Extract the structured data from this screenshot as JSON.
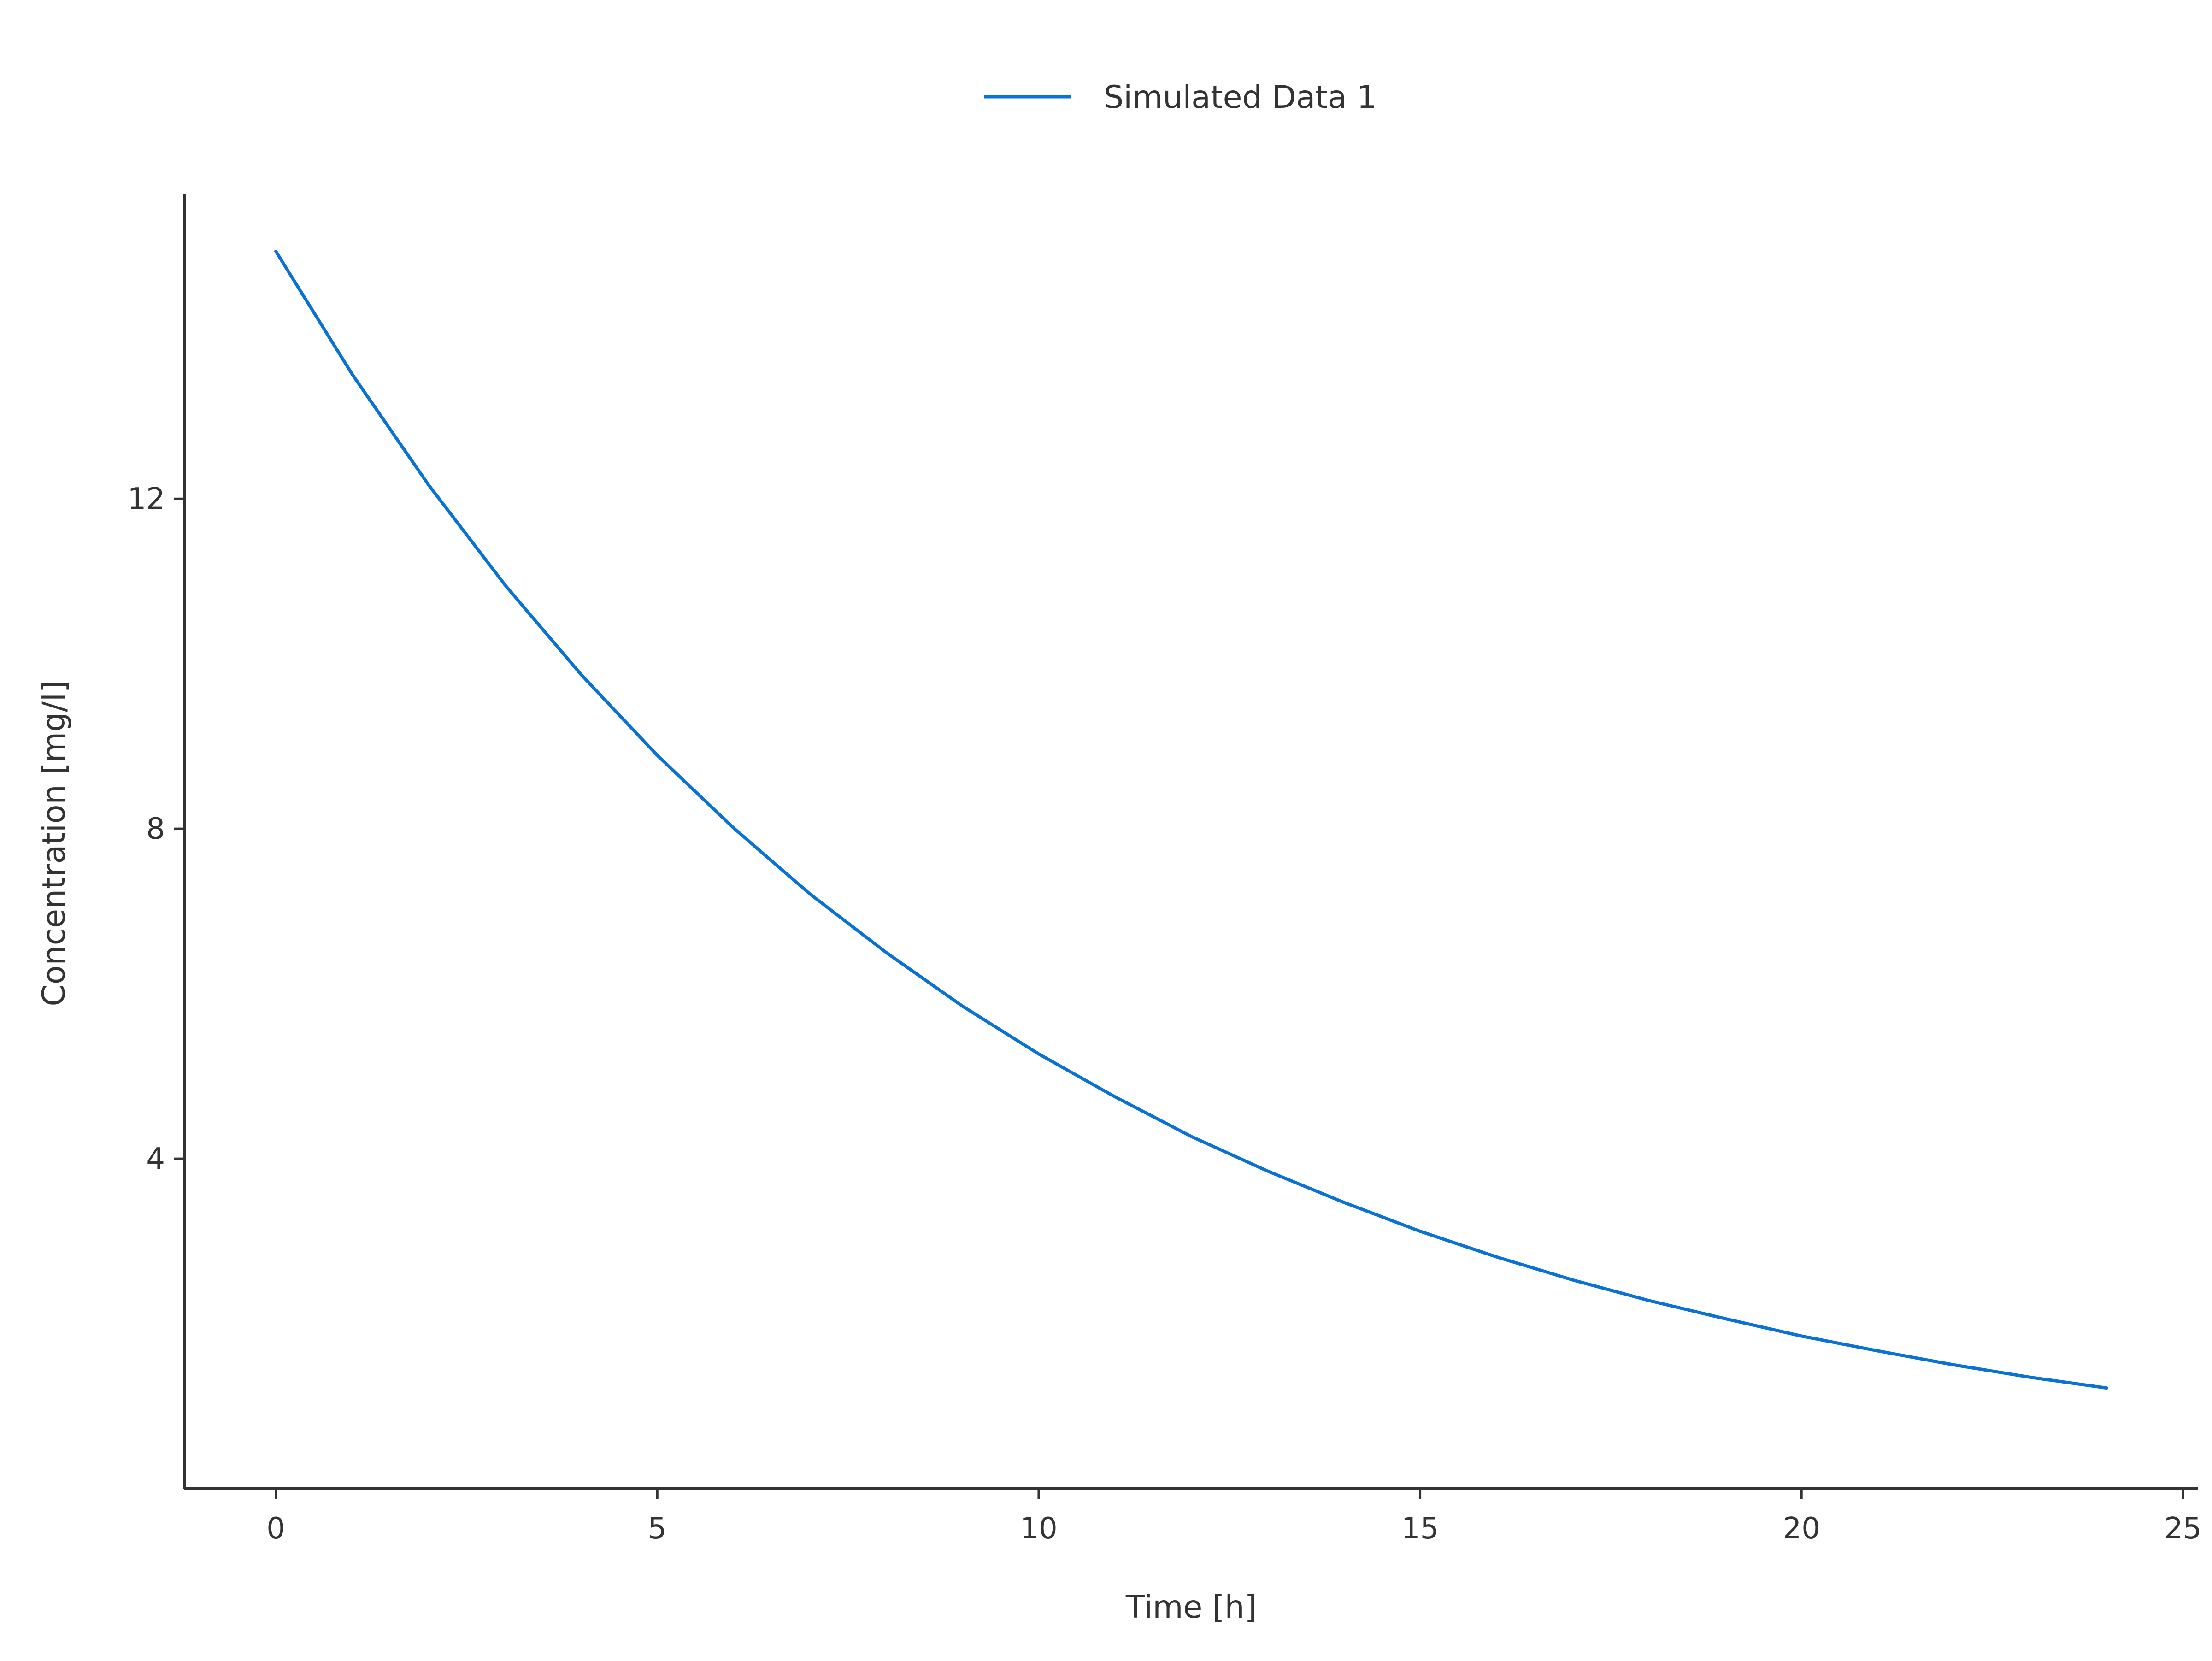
{
  "chart_data": {
    "type": "line",
    "xlabel": "Time [h]",
    "ylabel": "Concentration [mg/l]",
    "xlim": [
      -1.2,
      25.2
    ],
    "ylim": [
      0.0,
      15.7
    ],
    "xticks": [
      0,
      5,
      10,
      15,
      20,
      25
    ],
    "yticks": [
      4,
      8,
      12
    ],
    "grid": false,
    "legend_position": "top-center",
    "series": [
      {
        "name": "Simulated Data 1",
        "color": "#0a72d4",
        "x": [
          0,
          1,
          2,
          3,
          4,
          5,
          6,
          7,
          8,
          9,
          10,
          11,
          12,
          13,
          14,
          15,
          16,
          17,
          18,
          19,
          20,
          21,
          22,
          23,
          24
        ],
        "y": [
          15.0,
          13.51,
          12.17,
          10.96,
          9.87,
          8.89,
          8.01,
          7.21,
          6.5,
          5.85,
          5.27,
          4.75,
          4.27,
          3.85,
          3.47,
          3.12,
          2.81,
          2.53,
          2.28,
          2.06,
          1.85,
          1.67,
          1.5,
          1.35,
          1.22
        ]
      }
    ]
  }
}
